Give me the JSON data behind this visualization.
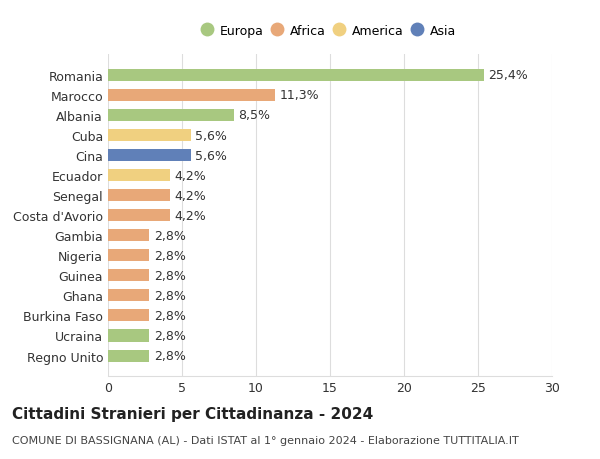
{
  "categories": [
    "Regno Unito",
    "Ucraina",
    "Burkina Faso",
    "Ghana",
    "Guinea",
    "Nigeria",
    "Gambia",
    "Costa d'Avorio",
    "Senegal",
    "Ecuador",
    "Cina",
    "Cuba",
    "Albania",
    "Marocco",
    "Romania"
  ],
  "values": [
    2.8,
    2.8,
    2.8,
    2.8,
    2.8,
    2.8,
    2.8,
    4.2,
    4.2,
    4.2,
    5.6,
    5.6,
    8.5,
    11.3,
    25.4
  ],
  "labels": [
    "2,8%",
    "2,8%",
    "2,8%",
    "2,8%",
    "2,8%",
    "2,8%",
    "2,8%",
    "4,2%",
    "4,2%",
    "4,2%",
    "5,6%",
    "5,6%",
    "8,5%",
    "11,3%",
    "25,4%"
  ],
  "colors": [
    "#a8c880",
    "#a8c880",
    "#e8a878",
    "#e8a878",
    "#e8a878",
    "#e8a878",
    "#e8a878",
    "#e8a878",
    "#e8a878",
    "#f0d080",
    "#6080b8",
    "#f0d080",
    "#a8c880",
    "#e8a878",
    "#a8c880"
  ],
  "legend": [
    {
      "label": "Europa",
      "color": "#a8c880"
    },
    {
      "label": "Africa",
      "color": "#e8a878"
    },
    {
      "label": "America",
      "color": "#f0d080"
    },
    {
      "label": "Asia",
      "color": "#6080b8"
    }
  ],
  "xlim": [
    0,
    30
  ],
  "xticks": [
    0,
    5,
    10,
    15,
    20,
    25,
    30
  ],
  "title": "Cittadini Stranieri per Cittadinanza - 2024",
  "subtitle": "COMUNE DI BASSIGNANA (AL) - Dati ISTAT al 1° gennaio 2024 - Elaborazione TUTTITALIA.IT",
  "background_color": "#ffffff",
  "bar_height": 0.6,
  "grid_color": "#dddddd",
  "label_fontsize": 9,
  "tick_fontsize": 9,
  "title_fontsize": 11,
  "subtitle_fontsize": 8
}
